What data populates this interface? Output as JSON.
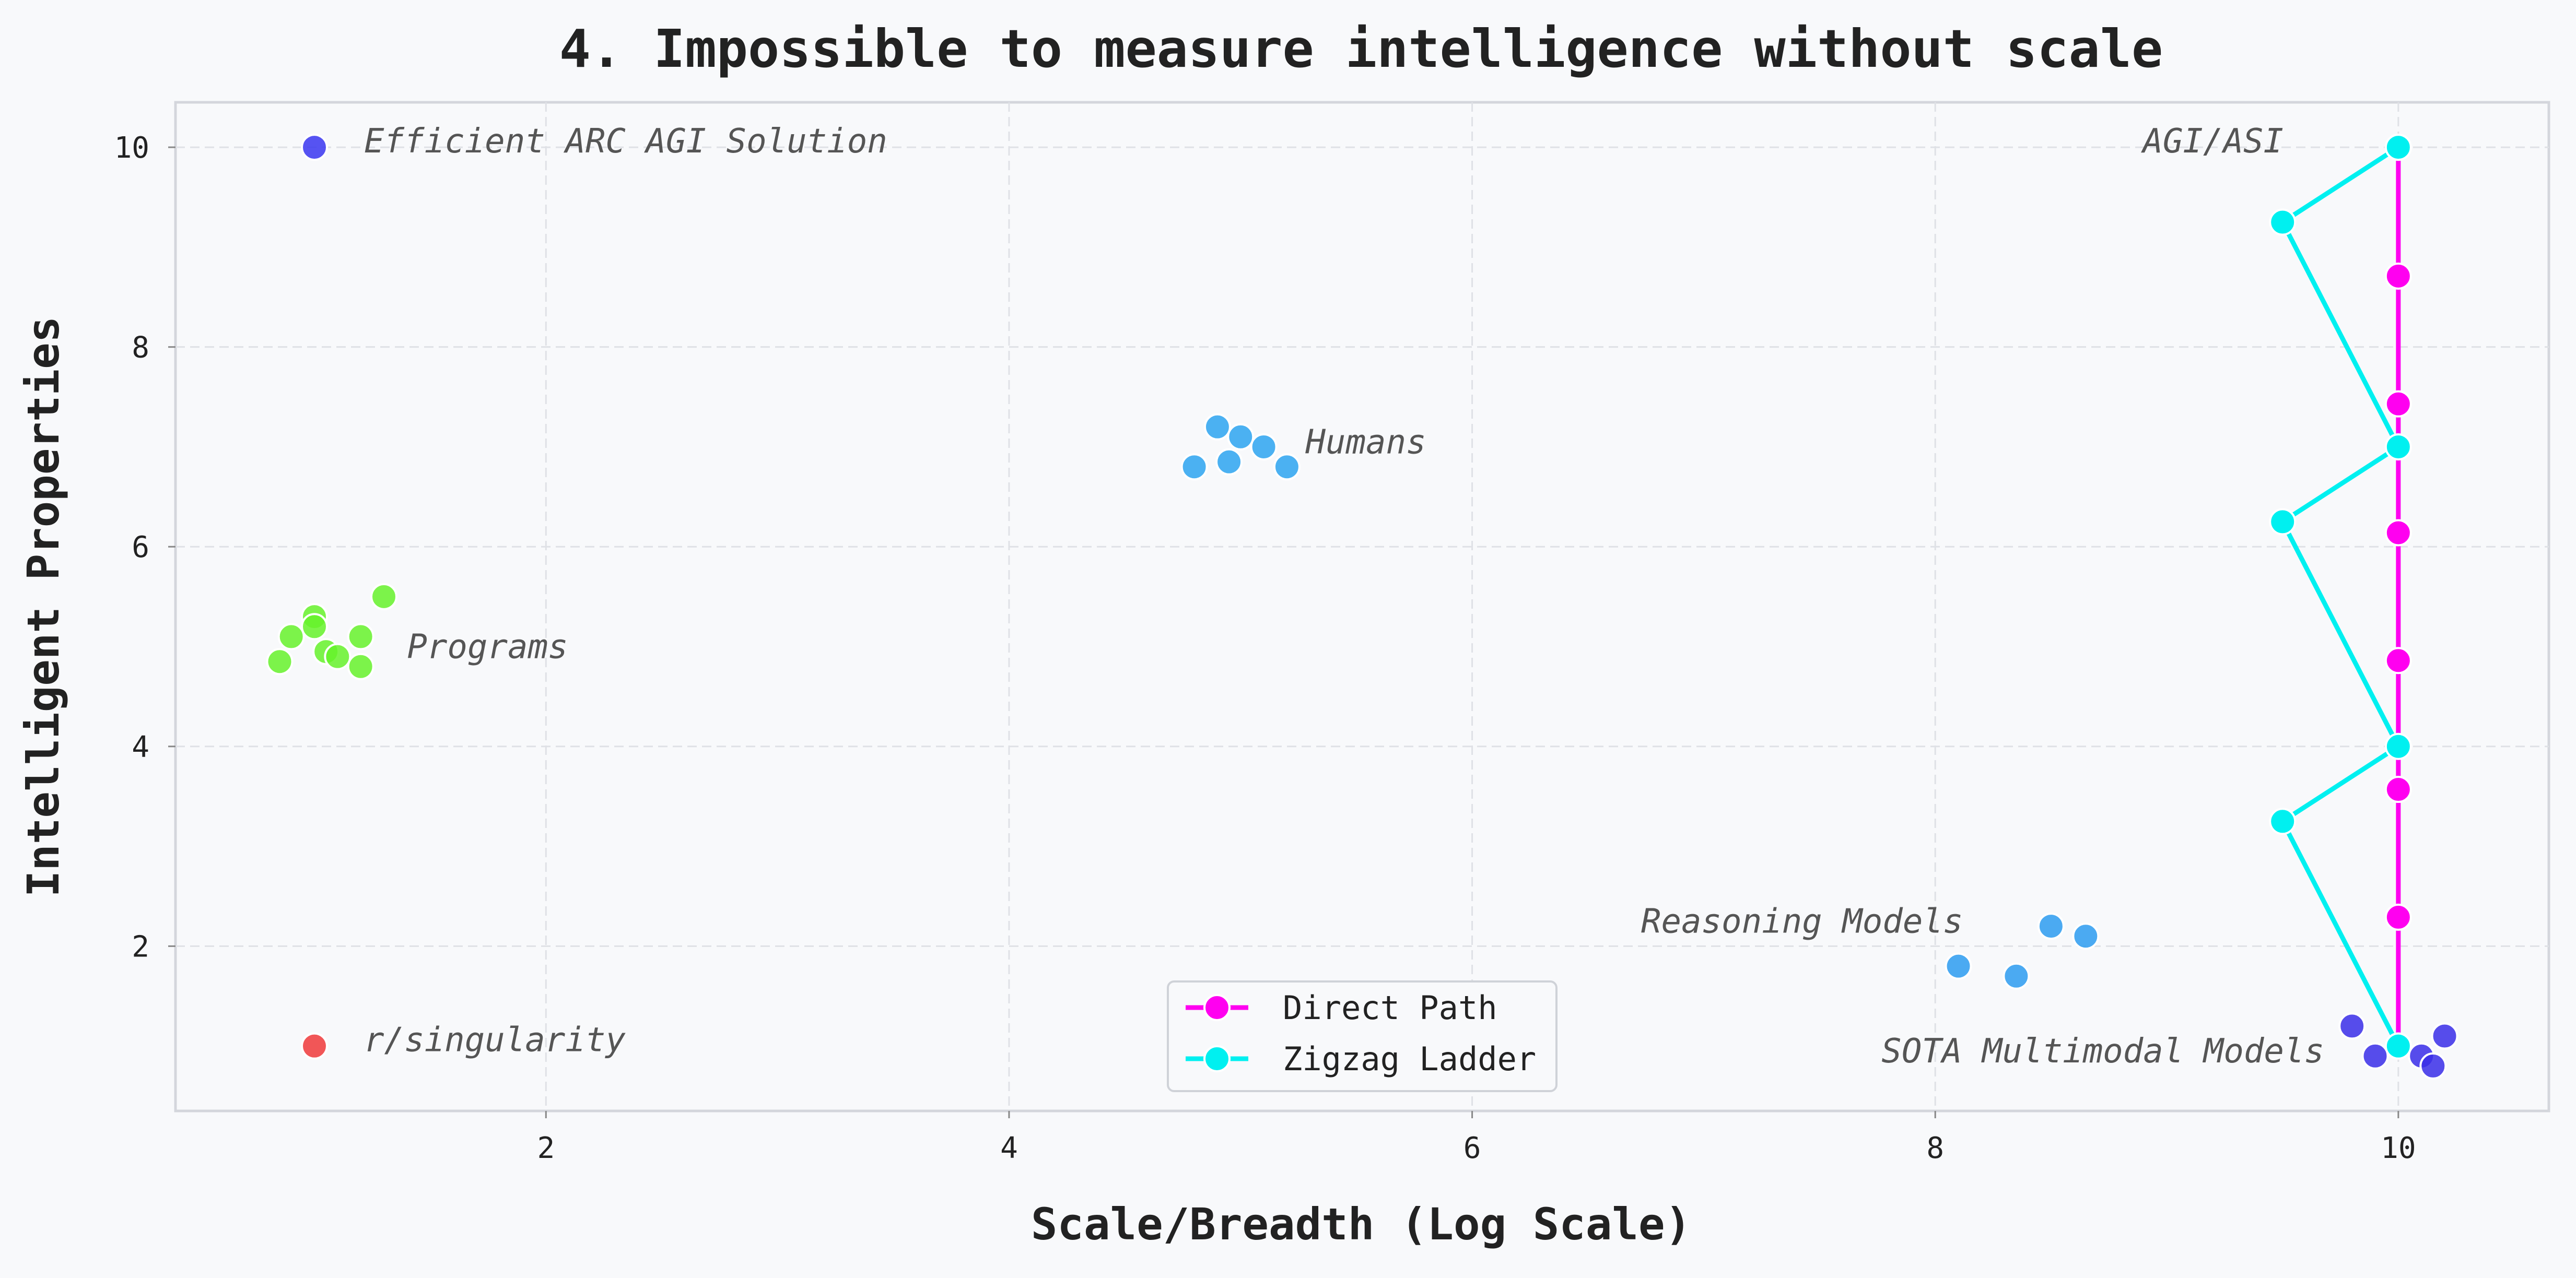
{
  "chart_data": {
    "type": "scatter",
    "title": "4. Impossible to measure intelligence without scale",
    "xlabel": "Scale/Breadth (Log Scale)",
    "ylabel": "Intelligent Properties",
    "xlim": [
      0.4,
      10.65
    ],
    "ylim": [
      0.35,
      10.45
    ],
    "x_ticks": [
      2,
      4,
      6,
      8,
      10
    ],
    "y_ticks": [
      2,
      4,
      6,
      8,
      10
    ],
    "grid": true,
    "legend_position": "bottom-center",
    "clusters": [
      {
        "label": "Efficient ARC AGI Solution",
        "color": "#3a36f0",
        "points": [
          [
            1.0,
            10.0
          ]
        ]
      },
      {
        "label": "r/singularity",
        "color": "#f03a3a",
        "points": [
          [
            1.0,
            1.0
          ]
        ]
      },
      {
        "label": "Programs",
        "color": "#66f22a",
        "points": [
          [
            0.85,
            4.85
          ],
          [
            0.9,
            5.1
          ],
          [
            1.0,
            5.3
          ],
          [
            1.0,
            5.2
          ],
          [
            1.05,
            4.95
          ],
          [
            1.1,
            4.9
          ],
          [
            1.2,
            5.1
          ],
          [
            1.2,
            4.8
          ],
          [
            1.3,
            5.5
          ]
        ]
      },
      {
        "label": "Humans",
        "color": "#2da4f0",
        "points": [
          [
            4.8,
            6.8
          ],
          [
            4.9,
            7.2
          ],
          [
            4.95,
            6.85
          ],
          [
            5.0,
            7.1
          ],
          [
            5.1,
            7.0
          ],
          [
            5.2,
            6.8
          ]
        ]
      },
      {
        "label": "Reasoning Models",
        "color": "#2d9cf0",
        "points": [
          [
            8.1,
            1.8
          ],
          [
            8.35,
            1.7
          ],
          [
            8.5,
            2.2
          ],
          [
            8.65,
            2.1
          ]
        ]
      },
      {
        "label": "SOTA Multimodal Models",
        "color": "#3a2ee8",
        "points": [
          [
            9.8,
            1.2
          ],
          [
            9.9,
            0.9
          ],
          [
            10.1,
            0.9
          ],
          [
            10.15,
            0.8
          ],
          [
            10.2,
            1.1
          ]
        ]
      }
    ],
    "series": [
      {
        "name": "Direct Path",
        "color": "#ff00f0",
        "x": [
          10,
          10,
          10,
          10,
          10,
          10,
          10,
          10
        ],
        "y": [
          1.0,
          2.29,
          3.57,
          4.86,
          6.14,
          7.43,
          8.71,
          10.0
        ]
      },
      {
        "name": "Zigzag Ladder",
        "color": "#00f0f0",
        "x": [
          10,
          9.5,
          10,
          9.5,
          10,
          9.5,
          10
        ],
        "y": [
          1.0,
          3.25,
          4.0,
          6.25,
          7.0,
          9.25,
          10.0
        ]
      }
    ],
    "annotations": [
      {
        "text": "AGI/ASI",
        "x": 9.2,
        "y": 10.0
      }
    ]
  }
}
